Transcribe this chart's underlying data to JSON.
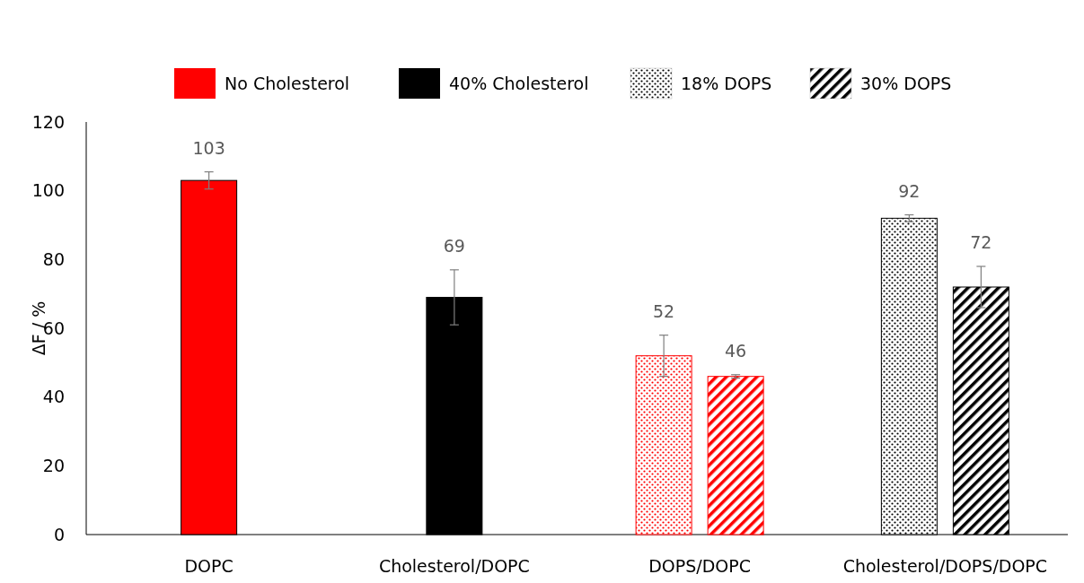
{
  "chart_data": {
    "type": "bar",
    "ylabel": "ΔF / %",
    "categories": [
      "DOPC",
      "Cholesterol/DOPC",
      "DOPS/DOPC",
      "Cholesterol/DOPS/DOPC"
    ],
    "series": [
      {
        "name": "No Cholesterol",
        "color": "#ff0000",
        "values": [
          103,
          null,
          null,
          null
        ],
        "errors": [
          2.5,
          null,
          null,
          null
        ]
      },
      {
        "name": "40% Cholesterol",
        "color": "#000000",
        "values": [
          null,
          69,
          null,
          null
        ],
        "errors": [
          null,
          8,
          null,
          null
        ]
      },
      {
        "name": "18% DOPS",
        "color": "#000000",
        "colors": [
          null,
          null,
          "#ff0000",
          "#000000"
        ],
        "values": [
          null,
          null,
          52,
          92
        ],
        "errors": [
          null,
          null,
          6,
          1
        ]
      },
      {
        "name": "30% DOPS",
        "color": "#000000",
        "colors": [
          null,
          null,
          "#ff0000",
          "#000000"
        ],
        "values": [
          null,
          null,
          46,
          72
        ],
        "errors": [
          null,
          null,
          0.5,
          6
        ]
      }
    ],
    "ylim": [
      0,
      120
    ],
    "yticks": [
      0,
      20,
      40,
      60,
      80,
      100,
      120
    ],
    "data_labels": true,
    "legend": "top"
  }
}
